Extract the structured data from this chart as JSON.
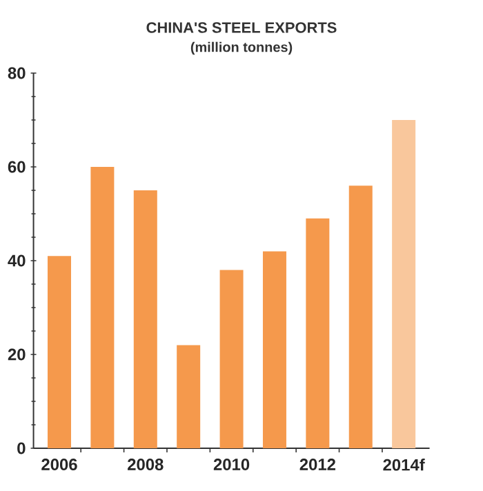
{
  "chart_data": {
    "type": "bar",
    "title": "CHINA'S STEEL EXPORTS",
    "subtitle": "(million tonnes)",
    "categories": [
      "2006",
      null,
      "2008",
      null,
      "2010",
      null,
      "2012",
      null,
      "2014f"
    ],
    "values": [
      41,
      60,
      55,
      22,
      38,
      42,
      49,
      56,
      70
    ],
    "colors": [
      "#f5994c",
      "#f5994c",
      "#f5994c",
      "#f5994c",
      "#f5994c",
      "#f5994c",
      "#f5994c",
      "#f5994c",
      "#f9c79c"
    ],
    "ylim": [
      0,
      80
    ],
    "yticks": [
      0,
      20,
      40,
      60,
      80
    ],
    "grid": false
  }
}
